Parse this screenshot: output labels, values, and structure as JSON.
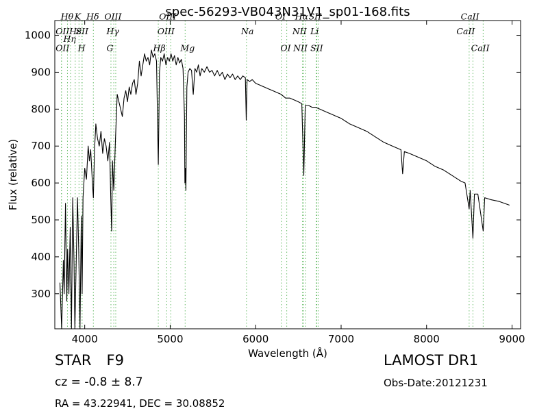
{
  "chart_data": {
    "type": "line",
    "title": "spec-56293-VB043N31V1_sp01-168.fits",
    "xlabel": "Wavelength (Å)",
    "ylabel": "Flux (relative)",
    "xlim": [
      3650,
      9100
    ],
    "ylim": [
      205,
      1040
    ],
    "x_ticks": [
      4000,
      5000,
      6000,
      7000,
      8000,
      9000
    ],
    "y_ticks": [
      300,
      400,
      500,
      600,
      700,
      800,
      900,
      1000
    ],
    "grid": false,
    "series": [
      {
        "color": "#000000",
        "points": [
          [
            3710,
            330
          ],
          [
            3730,
            205
          ],
          [
            3750,
            390
          ],
          [
            3760,
            300
          ],
          [
            3775,
            545
          ],
          [
            3790,
            280
          ],
          [
            3800,
            420
          ],
          [
            3815,
            300
          ],
          [
            3830,
            480
          ],
          [
            3845,
            205
          ],
          [
            3860,
            560
          ],
          [
            3875,
            380
          ],
          [
            3885,
            205
          ],
          [
            3900,
            380
          ],
          [
            3915,
            560
          ],
          [
            3930,
            420
          ],
          [
            3945,
            205
          ],
          [
            3960,
            510
          ],
          [
            3970,
            300
          ],
          [
            3980,
            560
          ],
          [
            4000,
            640
          ],
          [
            4020,
            610
          ],
          [
            4040,
            700
          ],
          [
            4055,
            660
          ],
          [
            4070,
            690
          ],
          [
            4090,
            600
          ],
          [
            4101,
            560
          ],
          [
            4115,
            690
          ],
          [
            4130,
            760
          ],
          [
            4150,
            720
          ],
          [
            4170,
            700
          ],
          [
            4190,
            740
          ],
          [
            4210,
            680
          ],
          [
            4230,
            720
          ],
          [
            4250,
            700
          ],
          [
            4270,
            660
          ],
          [
            4290,
            710
          ],
          [
            4305,
            560
          ],
          [
            4315,
            470
          ],
          [
            4325,
            660
          ],
          [
            4340,
            580
          ],
          [
            4360,
            720
          ],
          [
            4380,
            840
          ],
          [
            4400,
            820
          ],
          [
            4420,
            800
          ],
          [
            4440,
            780
          ],
          [
            4460,
            830
          ],
          [
            4480,
            850
          ],
          [
            4500,
            820
          ],
          [
            4520,
            860
          ],
          [
            4540,
            840
          ],
          [
            4560,
            870
          ],
          [
            4580,
            880
          ],
          [
            4600,
            840
          ],
          [
            4620,
            870
          ],
          [
            4640,
            930
          ],
          [
            4660,
            890
          ],
          [
            4680,
            920
          ],
          [
            4700,
            950
          ],
          [
            4720,
            930
          ],
          [
            4740,
            940
          ],
          [
            4760,
            920
          ],
          [
            4780,
            960
          ],
          [
            4800,
            940
          ],
          [
            4820,
            950
          ],
          [
            4840,
            930
          ],
          [
            4861,
            650
          ],
          [
            4875,
            900
          ],
          [
            4890,
            940
          ],
          [
            4910,
            930
          ],
          [
            4930,
            950
          ],
          [
            4950,
            920
          ],
          [
            4970,
            940
          ],
          [
            4990,
            930
          ],
          [
            5010,
            950
          ],
          [
            5030,
            930
          ],
          [
            5050,
            945
          ],
          [
            5070,
            920
          ],
          [
            5090,
            940
          ],
          [
            5110,
            925
          ],
          [
            5130,
            935
          ],
          [
            5150,
            910
          ],
          [
            5167,
            780
          ],
          [
            5172,
            600
          ],
          [
            5178,
            640
          ],
          [
            5184,
            580
          ],
          [
            5195,
            860
          ],
          [
            5210,
            900
          ],
          [
            5230,
            910
          ],
          [
            5250,
            905
          ],
          [
            5270,
            840
          ],
          [
            5290,
            910
          ],
          [
            5310,
            900
          ],
          [
            5330,
            920
          ],
          [
            5350,
            890
          ],
          [
            5370,
            910
          ],
          [
            5400,
            900
          ],
          [
            5430,
            915
          ],
          [
            5460,
            900
          ],
          [
            5490,
            905
          ],
          [
            5520,
            890
          ],
          [
            5550,
            905
          ],
          [
            5580,
            890
          ],
          [
            5610,
            900
          ],
          [
            5640,
            880
          ],
          [
            5670,
            895
          ],
          [
            5700,
            885
          ],
          [
            5730,
            895
          ],
          [
            5760,
            880
          ],
          [
            5790,
            890
          ],
          [
            5820,
            880
          ],
          [
            5850,
            890
          ],
          [
            5880,
            885
          ],
          [
            5890,
            770
          ],
          [
            5900,
            880
          ],
          [
            5930,
            875
          ],
          [
            5960,
            880
          ],
          [
            6000,
            870
          ],
          [
            6050,
            865
          ],
          [
            6100,
            860
          ],
          [
            6150,
            855
          ],
          [
            6200,
            850
          ],
          [
            6250,
            845
          ],
          [
            6300,
            840
          ],
          [
            6350,
            830
          ],
          [
            6400,
            830
          ],
          [
            6450,
            825
          ],
          [
            6500,
            820
          ],
          [
            6540,
            815
          ],
          [
            6563,
            620
          ],
          [
            6580,
            810
          ],
          [
            6620,
            810
          ],
          [
            6660,
            805
          ],
          [
            6700,
            805
          ],
          [
            6750,
            800
          ],
          [
            6800,
            795
          ],
          [
            6850,
            790
          ],
          [
            6900,
            785
          ],
          [
            6950,
            780
          ],
          [
            7000,
            775
          ],
          [
            7100,
            760
          ],
          [
            7200,
            750
          ],
          [
            7300,
            740
          ],
          [
            7400,
            725
          ],
          [
            7500,
            710
          ],
          [
            7600,
            700
          ],
          [
            7700,
            690
          ],
          [
            7720,
            625
          ],
          [
            7740,
            685
          ],
          [
            7800,
            680
          ],
          [
            7900,
            670
          ],
          [
            8000,
            660
          ],
          [
            8100,
            645
          ],
          [
            8200,
            635
          ],
          [
            8300,
            620
          ],
          [
            8400,
            605
          ],
          [
            8450,
            600
          ],
          [
            8498,
            530
          ],
          [
            8510,
            580
          ],
          [
            8542,
            450
          ],
          [
            8560,
            570
          ],
          [
            8600,
            570
          ],
          [
            8662,
            470
          ],
          [
            8680,
            560
          ],
          [
            8750,
            555
          ],
          [
            8850,
            550
          ],
          [
            8970,
            540
          ]
        ]
      }
    ],
    "spectral_lines": [
      {
        "label": "OII",
        "wavelength": 3727,
        "label_y": 1010,
        "label_x": 3660
      },
      {
        "label": "OII",
        "wavelength": 3729,
        "label_y": 965,
        "label_x": 3660
      },
      {
        "label": "Hθ",
        "wavelength": 3798,
        "label_y": 1050,
        "label_x": 3720
      },
      {
        "label": "Hη",
        "wavelength": 3835,
        "label_y": 990,
        "label_x": 3750
      },
      {
        "label": "Hε",
        "wavelength": 3889,
        "label_y": 1010,
        "label_x": 3820
      },
      {
        "label": "K",
        "wavelength": 3933,
        "label_y": 1050,
        "label_x": 3880
      },
      {
        "label": "SII",
        "wavelength": 3970,
        "label_y": 1010,
        "label_x": 3895
      },
      {
        "label": "H",
        "wavelength": 3968,
        "label_y": 965,
        "label_x": 3920
      },
      {
        "label": "Hδ",
        "wavelength": 4101,
        "label_y": 1050,
        "label_x": 4020
      },
      {
        "label": "OIII",
        "wavelength": 4363,
        "label_y": 1050,
        "label_x": 4230
      },
      {
        "label": "Hγ",
        "wavelength": 4340,
        "label_y": 1010,
        "label_x": 4255
      },
      {
        "label": "G",
        "wavelength": 4307,
        "label_y": 965,
        "label_x": 4255
      },
      {
        "label": "OIII",
        "wavelength": 4959,
        "label_y": 1050,
        "label_x": 4870
      },
      {
        "label": "OIII",
        "wavelength": 5007,
        "label_y": 1010,
        "label_x": 4850
      },
      {
        "label": "Hβ",
        "wavelength": 4861,
        "label_y": 965,
        "label_x": 4800
      },
      {
        "label": "Mg",
        "wavelength": 5175,
        "label_y": 965,
        "label_x": 5120
      },
      {
        "label": "Na",
        "wavelength": 5893,
        "label_y": 1010,
        "label_x": 5830
      },
      {
        "label": "OI",
        "wavelength": 6300,
        "label_y": 1050,
        "label_x": 6230
      },
      {
        "label": "OI",
        "wavelength": 6364,
        "label_y": 965,
        "label_x": 6290
      },
      {
        "label": "Hα",
        "wavelength": 6563,
        "label_y": 1050,
        "label_x": 6460
      },
      {
        "label": "SII",
        "wavelength": 6716,
        "label_y": 1050,
        "label_x": 6620
      },
      {
        "label": "NII",
        "wavelength": 6548,
        "label_y": 1010,
        "label_x": 6430
      },
      {
        "label": "Li",
        "wavelength": 6708,
        "label_y": 1010,
        "label_x": 6640
      },
      {
        "label": "NII",
        "wavelength": 6583,
        "label_y": 965,
        "label_x": 6440
      },
      {
        "label": "SII",
        "wavelength": 6731,
        "label_y": 965,
        "label_x": 6640
      },
      {
        "label": "CaII",
        "wavelength": 8498,
        "label_y": 1050,
        "label_x": 8400
      },
      {
        "label": "CaII",
        "wavelength": 8542,
        "label_y": 1010,
        "label_x": 8350
      },
      {
        "label": "CaII",
        "wavelength": 8662,
        "label_y": 965,
        "label_x": 8520
      }
    ]
  },
  "info": {
    "class_label": "STAR",
    "subclass": "F9",
    "survey": "LAMOST DR1",
    "redshift": "cz = -0.8 ± 8.7",
    "obs_date": "Obs-Date:20121231",
    "coords": "RA = 43.22941, DEC = 30.08852"
  },
  "colors": {
    "spectrum": "#000000",
    "line_marker": "#66bb66"
  }
}
